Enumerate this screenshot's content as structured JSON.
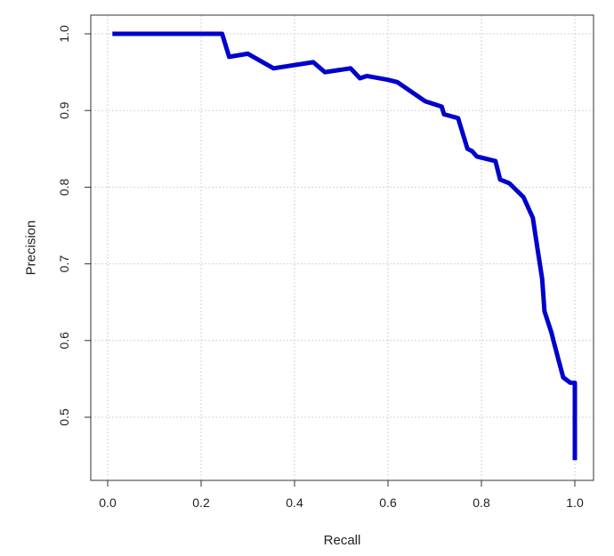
{
  "chart_data": {
    "type": "line",
    "title": "",
    "xlabel": "Recall",
    "ylabel": "Precision",
    "xlim": [
      0.0,
      1.0
    ],
    "ylim": [
      0.44,
      1.0
    ],
    "x_ticks": [
      "0.0",
      "0.2",
      "0.4",
      "0.6",
      "0.8",
      "1.0"
    ],
    "y_ticks": [
      "0.5",
      "0.6",
      "0.7",
      "0.8",
      "0.9",
      "1.0"
    ],
    "grid": "dotted, light gray",
    "legend": "none",
    "series": [
      {
        "color": "#0000cc",
        "x": [
          0.01,
          0.245,
          0.26,
          0.3,
          0.355,
          0.44,
          0.465,
          0.52,
          0.54,
          0.555,
          0.6,
          0.62,
          0.68,
          0.715,
          0.72,
          0.75,
          0.77,
          0.78,
          0.79,
          0.83,
          0.84,
          0.86,
          0.89,
          0.91,
          0.92,
          0.93,
          0.935,
          0.95,
          0.955,
          0.965,
          0.975,
          0.99,
          0.995,
          1.0,
          1.0
        ],
        "y": [
          1.0,
          1.0,
          0.97,
          0.974,
          0.955,
          0.963,
          0.95,
          0.955,
          0.942,
          0.945,
          0.94,
          0.937,
          0.912,
          0.905,
          0.895,
          0.89,
          0.85,
          0.847,
          0.84,
          0.834,
          0.81,
          0.805,
          0.787,
          0.76,
          0.72,
          0.68,
          0.638,
          0.61,
          0.598,
          0.575,
          0.552,
          0.545,
          0.545,
          0.545,
          0.444
        ]
      }
    ]
  }
}
